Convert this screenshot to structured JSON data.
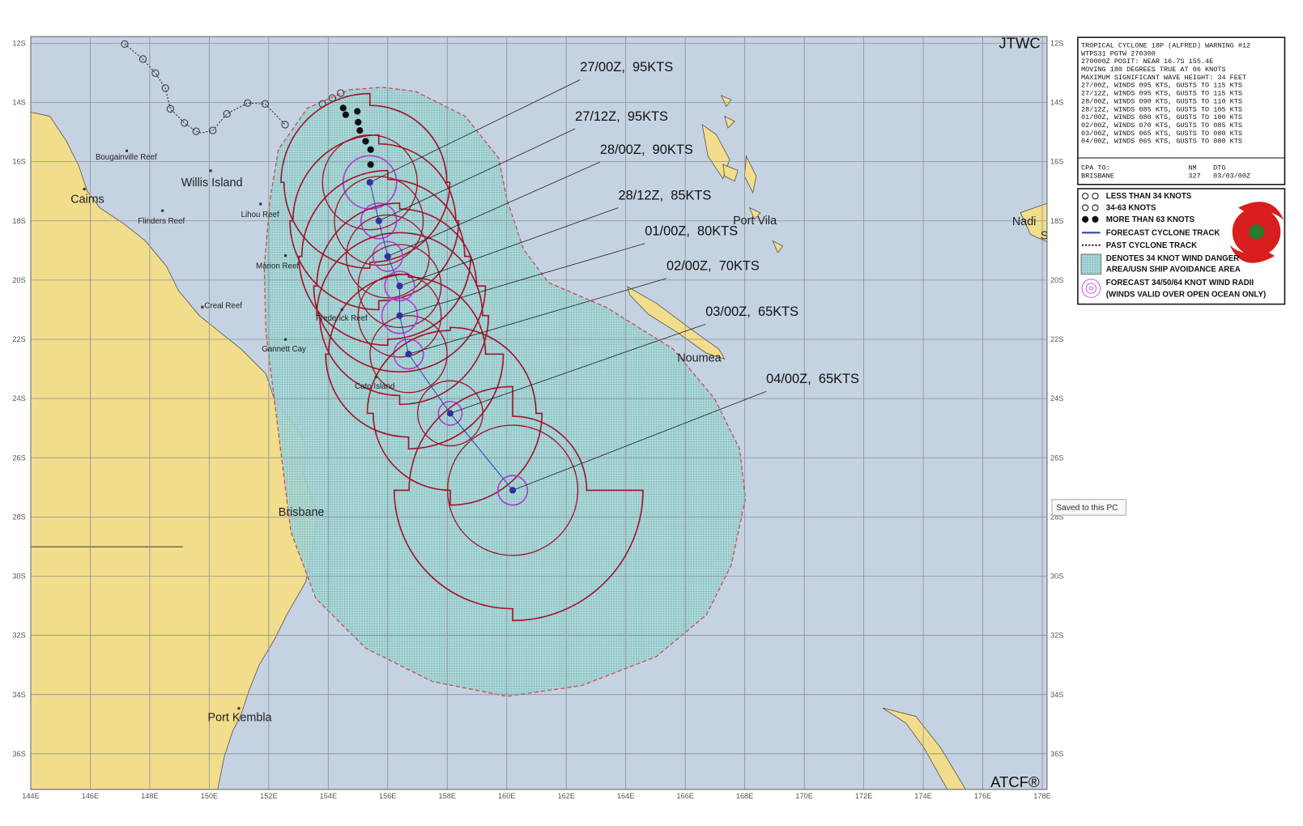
{
  "map": {
    "corner_top": "JTWC",
    "corner_bottom": "ATCF®",
    "lat_ticks": [
      {
        "value": 12,
        "label": "12S"
      },
      {
        "value": 14,
        "label": "14S"
      },
      {
        "value": 16,
        "label": "16S"
      },
      {
        "value": 18,
        "label": "18S"
      },
      {
        "value": 20,
        "label": "20S"
      },
      {
        "value": 22,
        "label": "22S"
      },
      {
        "value": 24,
        "label": "24S"
      },
      {
        "value": 26,
        "label": "26S"
      },
      {
        "value": 28,
        "label": "28S"
      },
      {
        "value": 30,
        "label": "30S"
      },
      {
        "value": 32,
        "label": "32S"
      },
      {
        "value": 34,
        "label": "34S"
      },
      {
        "value": 36,
        "label": "36S"
      }
    ],
    "lon_ticks": [
      {
        "value": 144,
        "label": "144E"
      },
      {
        "value": 146,
        "label": "146E"
      },
      {
        "value": 148,
        "label": "148E"
      },
      {
        "value": 150,
        "label": "150E"
      },
      {
        "value": 152,
        "label": "152E"
      },
      {
        "value": 154,
        "label": "154E"
      },
      {
        "value": 156,
        "label": "156E"
      },
      {
        "value": 158,
        "label": "158E"
      },
      {
        "value": 160,
        "label": "160E"
      },
      {
        "value": 162,
        "label": "162E"
      },
      {
        "value": 164,
        "label": "164E"
      },
      {
        "value": 166,
        "label": "166E"
      },
      {
        "value": 168,
        "label": "168E"
      },
      {
        "value": 170,
        "label": "170E"
      },
      {
        "value": 172,
        "label": "172E"
      },
      {
        "value": 174,
        "label": "174E"
      },
      {
        "value": 176,
        "label": "176E"
      },
      {
        "value": 178,
        "label": "178E"
      }
    ],
    "forecast": [
      {
        "label": "27/00Z,  95KTS",
        "lat": 16.7,
        "lon": 155.4,
        "r34": [
          2.6,
          2.7,
          2.9,
          3.0
        ],
        "r50": 1.6,
        "r64": 0.9
      },
      {
        "label": "27/12Z,  95KTS",
        "lat": 18.0,
        "lon": 155.7,
        "r34": [
          2.6,
          2.7,
          3.0,
          2.9
        ],
        "r50": 1.5,
        "r64": 0.6
      },
      {
        "label": "28/00Z,  90KTS",
        "lat": 19.2,
        "lon": 156.0,
        "r34": [
          2.6,
          2.8,
          3.0,
          2.9
        ],
        "r50": 1.4,
        "r64": 0.5
      },
      {
        "label": "28/12Z,  85KTS",
        "lat": 20.2,
        "lon": 156.4,
        "r34": [
          2.6,
          2.9,
          2.9,
          2.8
        ],
        "r50": 1.4,
        "r64": 0.5
      },
      {
        "label": "01/00Z,  80KTS",
        "lat": 21.2,
        "lon": 156.4,
        "r34": [
          2.8,
          3.0,
          2.7,
          2.8
        ],
        "r50": 1.4,
        "r64": 0.6
      },
      {
        "label": "02/00Z,  70KTS",
        "lat": 22.5,
        "lon": 156.7,
        "r34": [
          2.6,
          3.2,
          2.8,
          2.7
        ],
        "r50": 1.3,
        "r64": 0.5
      },
      {
        "label": "03/00Z,  65KTS",
        "lat": 24.5,
        "lon": 158.1,
        "r34": [
          2.9,
          3.1,
          2.6,
          2.8
        ],
        "r50": 1.1,
        "r64": 0.4
      },
      {
        "label": "04/00Z,  65KTS",
        "lat": 27.1,
        "lon": 160.2,
        "r34": [
          2.5,
          4.4,
          4.0,
          3.5
        ],
        "r50": 2.2,
        "r64": 0.5
      }
    ],
    "places": {
      "cairns": "Cairns",
      "bougainville": "Bougainville Reef",
      "willis": "Willis Island",
      "lihou": "Lihou Reef",
      "flinders": "Flinders Reef",
      "marion": "Marion Reef",
      "creal": "Creal Reef",
      "frederick": "Frederick Reef",
      "gannett": "Gannett Cay",
      "cato": "Cato Island",
      "brisbane": "Brisbane",
      "kembla": "Port Kembla",
      "vila": "Port Vila",
      "noumea": "Noumea",
      "nadi": "Nadi",
      "cut": "S"
    }
  },
  "warning": {
    "lines": [
      "TROPICAL CYCLONE 18P (ALFRED) WARNING #12",
      "WTPS31 PGTW 270300",
      "270000Z POSIT: NEAR 16.7S 155.4E",
      "MOVING 180 DEGREES TRUE AT 06 KNOTS",
      "MAXIMUM SIGNIFICANT WAVE HEIGHT: 34 FEET",
      "27/00Z, WINDS 095 KTS, GUSTS TO 115 KTS",
      "27/12Z, WINDS 095 KTS, GUSTS TO 115 KTS",
      "28/00Z, WINDS 090 KTS, GUSTS TO 110 KTS",
      "28/12Z, WINDS 085 KTS, GUSTS TO 105 KTS",
      "01/00Z, WINDS 080 KTS, GUSTS TO 100 KTS",
      "02/00Z, WINDS 070 KTS, GUSTS TO 085 KTS",
      "03/00Z, WINDS 065 KTS, GUSTS TO 080 KTS",
      "04/00Z, WINDS 065 KTS, GUSTS TO 080 KTS"
    ],
    "cpa_header": [
      "CPA TO:",
      "NM",
      "DTG"
    ],
    "cpa_row": [
      "BRISBANE",
      "327",
      "03/03/00Z"
    ]
  },
  "legend": [
    "LESS THAN 34 KNOTS",
    "34-63 KNOTS",
    "MORE THAN 63 KNOTS",
    "FORECAST CYCLONE TRACK",
    "PAST CYCLONE TRACK",
    "DENOTES 34 KNOT WIND DANGER",
    "AREA/USN SHIP AVOIDANCE AREA",
    "FORECAST 34/50/64 KNOT WIND RADII",
    "(WINDS VALID OVER OPEN OCEAN ONLY)"
  ],
  "tooltip": "Saved to this PC"
}
